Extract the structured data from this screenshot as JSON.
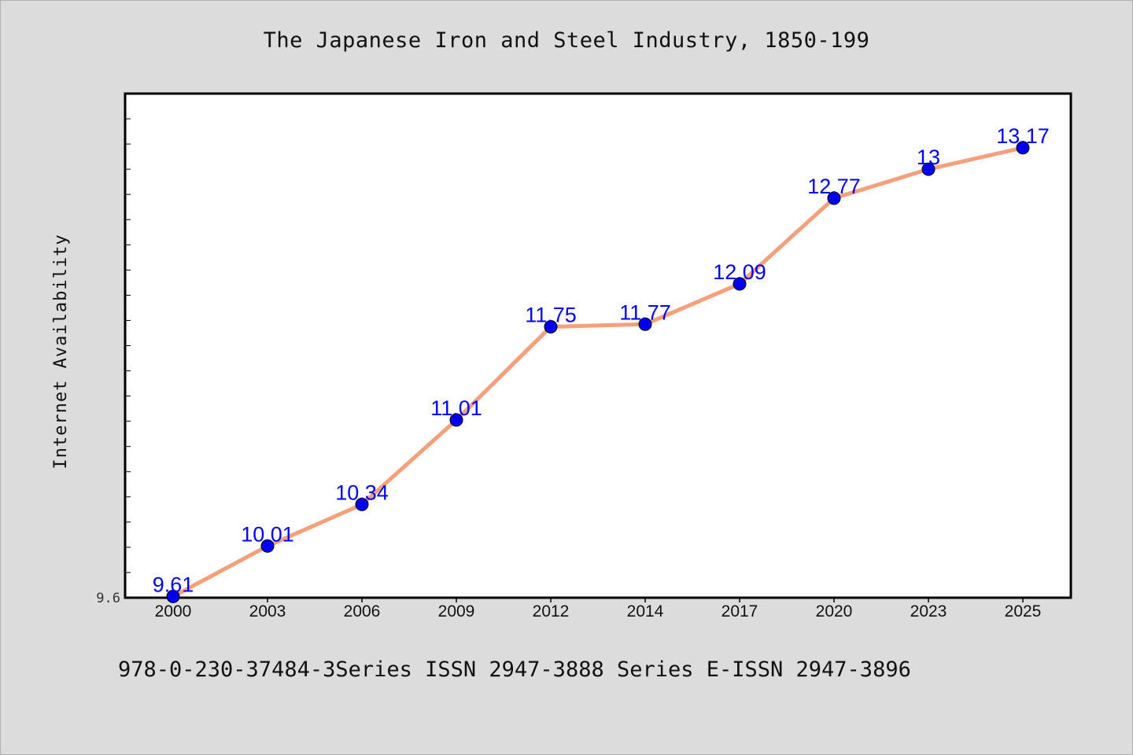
{
  "chart_data": {
    "type": "line",
    "title": "The Japanese Iron and Steel Industry, 1850-199",
    "xlabel": "",
    "ylabel": "Internet Availability",
    "categories": [
      "2000",
      "2003",
      "2006",
      "2009",
      "2012",
      "2014",
      "2017",
      "2020",
      "2023",
      "2025"
    ],
    "series": [
      {
        "values": [
          9.61,
          10.01,
          10.34,
          11.01,
          11.75,
          11.77,
          12.09,
          12.77,
          13,
          13.17
        ],
        "labels": [
          "9.61",
          "10.01",
          "10.34",
          "11.01",
          "11.75",
          "11.77",
          "12.09",
          "12.77",
          "13",
          "13.17"
        ],
        "line_color": "#f4a07a",
        "marker_color": "#0000ee"
      }
    ],
    "y_tick_labels": [
      "9.6"
    ],
    "ylim": [
      9.6,
      13.6
    ],
    "grid": false
  },
  "footer": {
    "text": "978-0-230-37484-3Series ISSN 2947-3888 Series E-ISSN 2947-3896"
  }
}
